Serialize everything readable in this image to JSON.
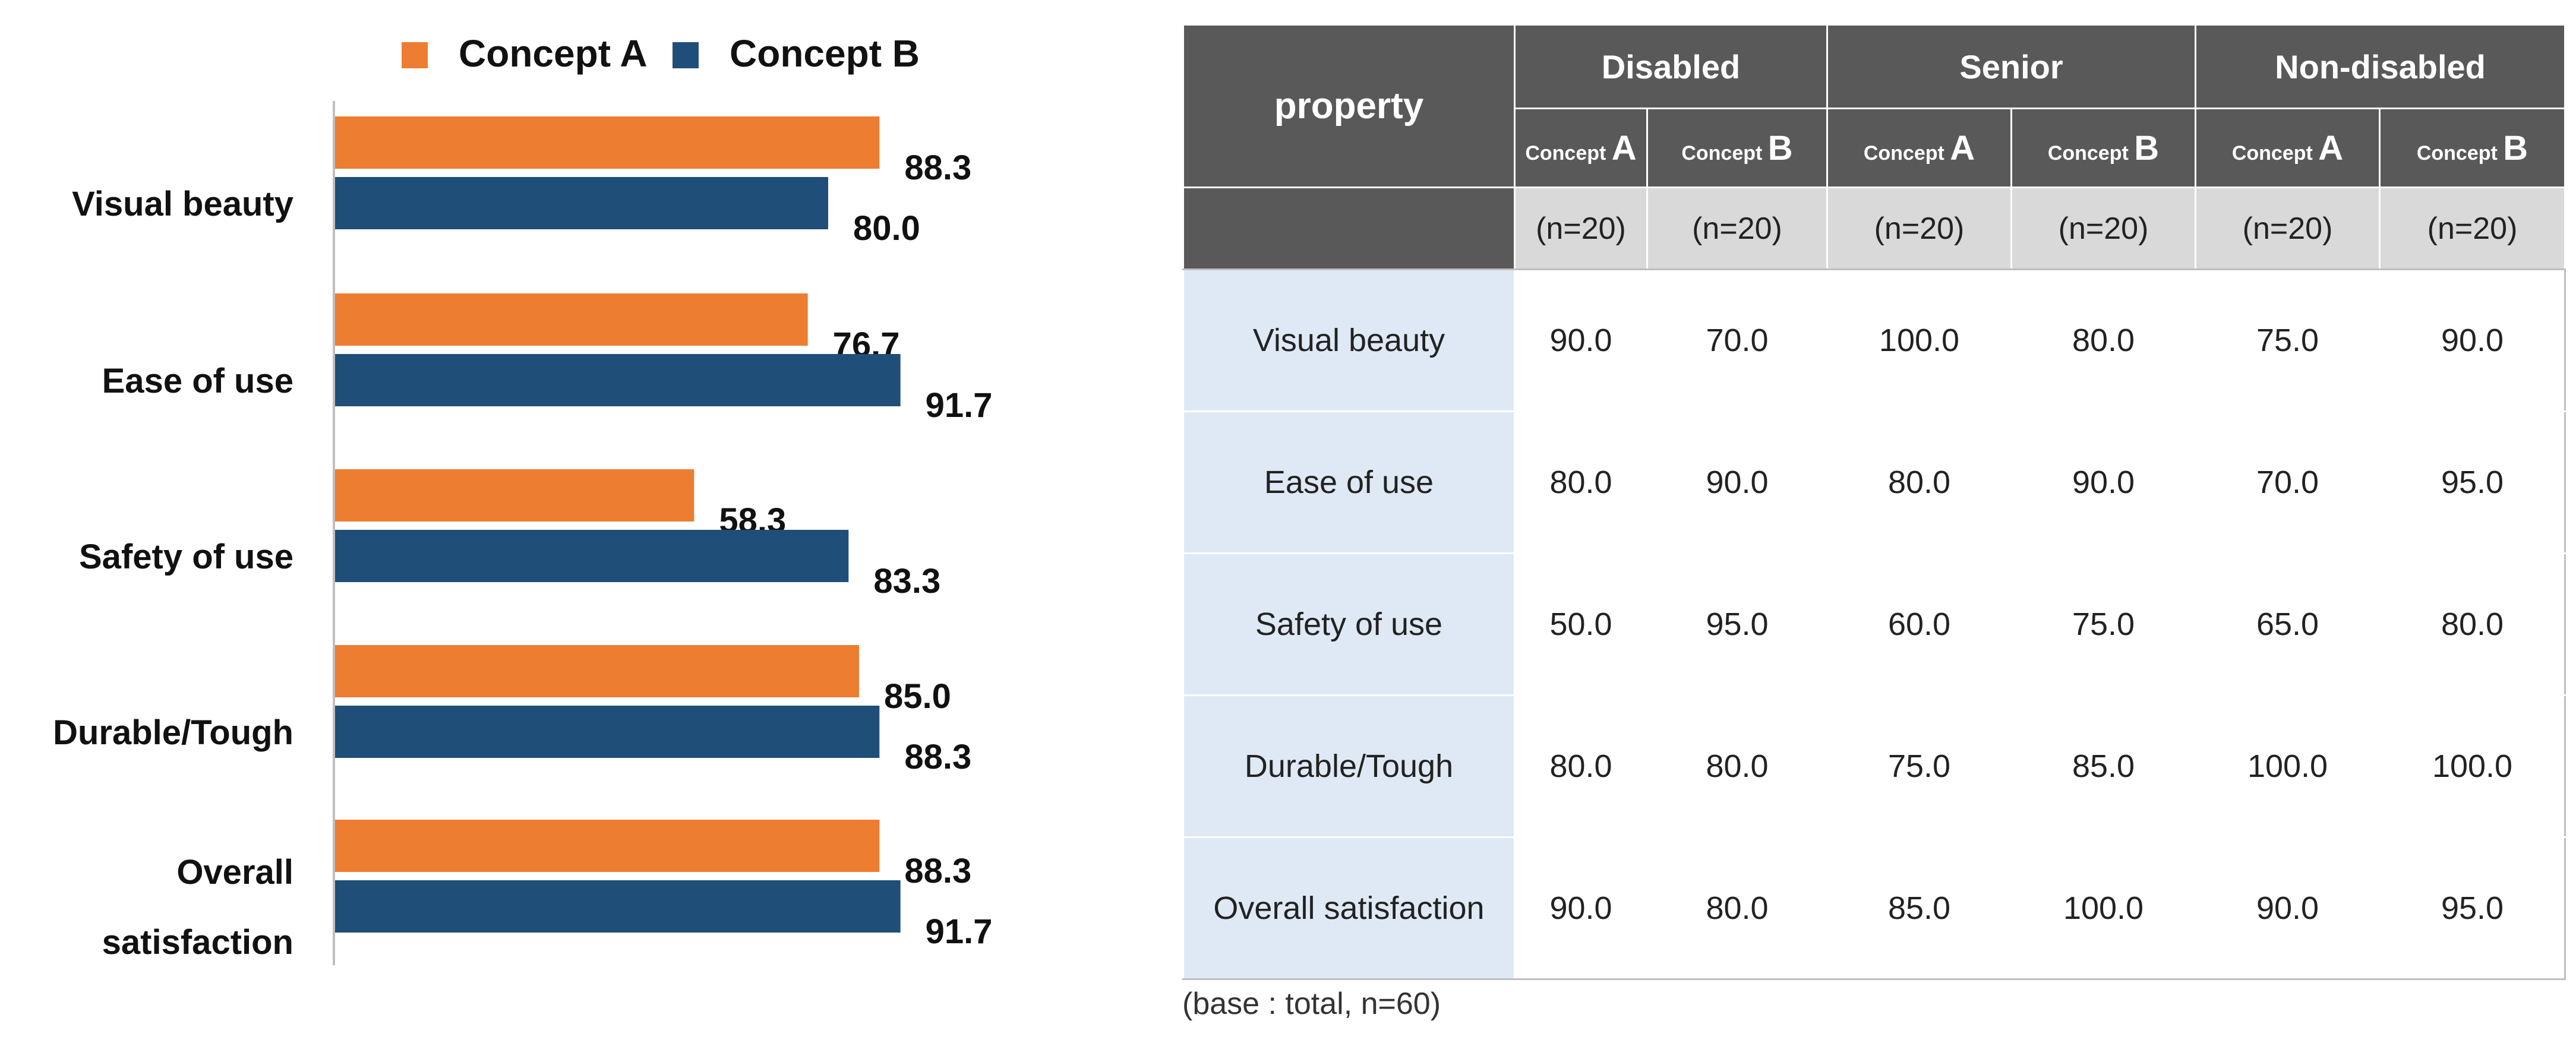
{
  "colors": {
    "concept_a": "#ED7D31",
    "concept_b": "#1F4E79",
    "header_bg": "#595959",
    "subheader_bg": "#D9D9D9",
    "row_label_bg": "#DFE9F5"
  },
  "chart_data": {
    "type": "bar",
    "orientation": "horizontal",
    "title": "",
    "xlabel": "",
    "ylabel": "",
    "xlim": [
      0,
      100
    ],
    "grid": false,
    "legend_position": "top",
    "categories": [
      "Visual beauty",
      "Ease of use",
      "Safety of use",
      "Durable/Tough",
      "Overall\nsatisfaction"
    ],
    "series": [
      {
        "name": "Concept A",
        "color": "#ED7D31",
        "values": [
          88.3,
          76.7,
          58.3,
          85.0,
          88.3
        ],
        "labels": [
          "88.3",
          "76.7",
          "58.3",
          "85.0",
          "88.3"
        ]
      },
      {
        "name": "Concept B",
        "color": "#1F4E79",
        "values": [
          80.0,
          91.7,
          83.3,
          88.3,
          91.7
        ],
        "labels": [
          "80.0",
          "91.7",
          "83.3",
          "88.3",
          "91.7"
        ]
      }
    ]
  },
  "table": {
    "property_header": "property",
    "groups": [
      "Disabled",
      "Senior",
      "Non-disabled"
    ],
    "concept_prefix": "Concept",
    "concept_letters": [
      "A",
      "B"
    ],
    "n_label": "(n=20)",
    "rows": [
      {
        "label": "Visual beauty",
        "values": [
          "90.0",
          "70.0",
          "100.0",
          "80.0",
          "75.0",
          "90.0"
        ]
      },
      {
        "label": "Ease of use",
        "values": [
          "80.0",
          "90.0",
          "80.0",
          "90.0",
          "70.0",
          "95.0"
        ]
      },
      {
        "label": "Safety of use",
        "values": [
          "50.0",
          "95.0",
          "60.0",
          "75.0",
          "65.0",
          "80.0"
        ]
      },
      {
        "label": "Durable/Tough",
        "values": [
          "80.0",
          "80.0",
          "75.0",
          "85.0",
          "100.0",
          "100.0"
        ]
      },
      {
        "label": "Overall satisfaction",
        "values": [
          "90.0",
          "80.0",
          "85.0",
          "100.0",
          "90.0",
          "95.0"
        ]
      }
    ],
    "footnote": "(base : total, n=60)"
  }
}
